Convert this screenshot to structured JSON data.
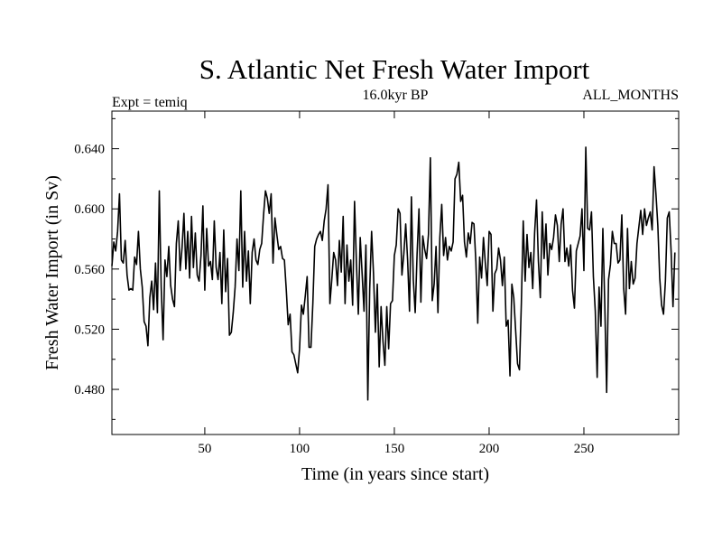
{
  "chart_data": {
    "type": "line",
    "title": "S. Atlantic Net Fresh Water Import",
    "subtitle_left": "Expt = temiq",
    "subtitle_center": "16.0kyr BP",
    "subtitle_right": "ALL_MONTHS",
    "xlabel": "Time (in years since start)",
    "ylabel": "Fresh Water Import (in Sv)",
    "xlim": [
      1,
      300
    ],
    "ylim": [
      0.45,
      0.665
    ],
    "x_ticks": [
      50,
      100,
      150,
      200,
      250
    ],
    "y_ticks": [
      0.48,
      0.52,
      0.56,
      0.6,
      0.64
    ],
    "x_tick_labels": [
      "50",
      "100",
      "150",
      "200",
      "250"
    ],
    "y_tick_labels": [
      "0.480",
      "0.520",
      "0.560",
      "0.600",
      "0.640"
    ],
    "series": [
      {
        "name": "Net Fresh Water Import",
        "color": "#000000",
        "x_start": 1,
        "x_step": 1,
        "values": [
          0.562,
          0.578,
          0.572,
          0.585,
          0.61,
          0.566,
          0.564,
          0.579,
          0.556,
          0.546,
          0.547,
          0.546,
          0.568,
          0.563,
          0.585,
          0.56,
          0.548,
          0.525,
          0.522,
          0.509,
          0.541,
          0.552,
          0.533,
          0.564,
          0.531,
          0.612,
          0.548,
          0.513,
          0.566,
          0.555,
          0.575,
          0.549,
          0.54,
          0.535,
          0.577,
          0.592,
          0.559,
          0.574,
          0.597,
          0.56,
          0.585,
          0.554,
          0.595,
          0.561,
          0.584,
          0.556,
          0.552,
          0.569,
          0.602,
          0.546,
          0.587,
          0.562,
          0.565,
          0.553,
          0.592,
          0.561,
          0.553,
          0.571,
          0.537,
          0.586,
          0.545,
          0.567,
          0.516,
          0.518,
          0.531,
          0.548,
          0.58,
          0.559,
          0.612,
          0.548,
          0.585,
          0.552,
          0.572,
          0.537,
          0.571,
          0.58,
          0.566,
          0.563,
          0.573,
          0.577,
          0.596,
          0.612,
          0.607,
          0.597,
          0.61,
          0.564,
          0.594,
          0.583,
          0.573,
          0.575,
          0.567,
          0.566,
          0.546,
          0.523,
          0.53,
          0.505,
          0.503,
          0.497,
          0.491,
          0.507,
          0.536,
          0.53,
          0.542,
          0.555,
          0.508,
          0.508,
          0.537,
          0.575,
          0.58,
          0.583,
          0.585,
          0.579,
          0.592,
          0.6,
          0.616,
          0.537,
          0.553,
          0.571,
          0.566,
          0.549,
          0.579,
          0.558,
          0.595,
          0.537,
          0.576,
          0.552,
          0.566,
          0.536,
          0.605,
          0.564,
          0.53,
          0.581,
          0.557,
          0.532,
          0.576,
          0.473,
          0.547,
          0.585,
          0.557,
          0.518,
          0.55,
          0.495,
          0.535,
          0.512,
          0.496,
          0.535,
          0.507,
          0.537,
          0.539,
          0.569,
          0.576,
          0.6,
          0.597,
          0.556,
          0.57,
          0.59,
          0.566,
          0.532,
          0.608,
          0.553,
          0.531,
          0.57,
          0.6,
          0.538,
          0.582,
          0.573,
          0.567,
          0.583,
          0.634,
          0.539,
          0.55,
          0.575,
          0.531,
          0.581,
          0.603,
          0.569,
          0.581,
          0.566,
          0.575,
          0.572,
          0.578,
          0.62,
          0.623,
          0.631,
          0.605,
          0.609,
          0.578,
          0.568,
          0.584,
          0.577,
          0.591,
          0.59,
          0.565,
          0.524,
          0.568,
          0.554,
          0.581,
          0.564,
          0.549,
          0.585,
          0.583,
          0.532,
          0.557,
          0.56,
          0.574,
          0.566,
          0.549,
          0.568,
          0.522,
          0.526,
          0.489,
          0.55,
          0.541,
          0.519,
          0.497,
          0.493,
          0.537,
          0.592,
          0.552,
          0.583,
          0.561,
          0.571,
          0.547,
          0.584,
          0.606,
          0.565,
          0.541,
          0.598,
          0.567,
          0.59,
          0.556,
          0.577,
          0.573,
          0.581,
          0.596,
          0.589,
          0.565,
          0.59,
          0.6,
          0.565,
          0.574,
          0.562,
          0.576,
          0.546,
          0.534,
          0.572,
          0.577,
          0.582,
          0.6,
          0.559,
          0.641,
          0.587,
          0.586,
          0.598,
          0.555,
          0.532,
          0.488,
          0.548,
          0.522,
          0.587,
          0.537,
          0.478,
          0.553,
          0.563,
          0.585,
          0.577,
          0.577,
          0.564,
          0.566,
          0.596,
          0.547,
          0.53,
          0.587,
          0.547,
          0.565,
          0.55,
          0.554,
          0.577,
          0.588,
          0.599,
          0.583,
          0.6,
          0.589,
          0.594,
          0.598,
          0.586,
          0.628,
          0.61,
          0.589,
          0.554,
          0.536,
          0.53,
          0.552,
          0.594,
          0.598,
          0.572,
          0.535,
          0.571
        ]
      }
    ]
  }
}
